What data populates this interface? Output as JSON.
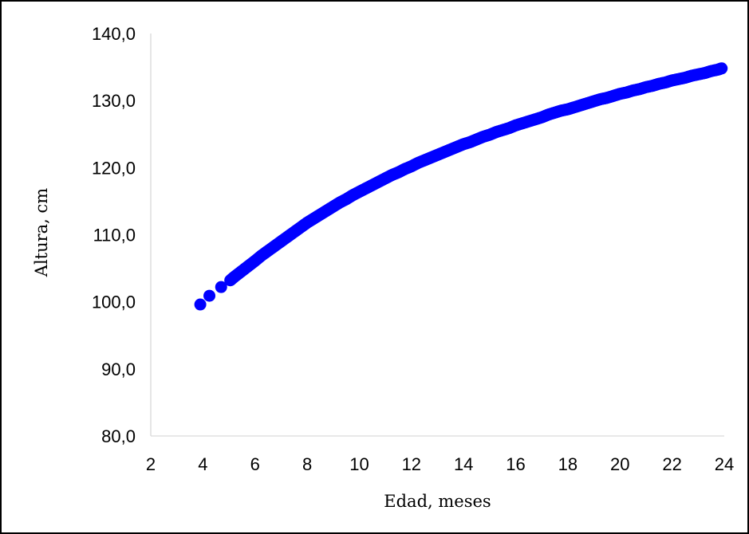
{
  "chart_data": {
    "type": "scatter",
    "title": "",
    "xlabel": "Edad, meses",
    "ylabel": "Altura, cm",
    "xlim": [
      2,
      24
    ],
    "ylim": [
      80,
      140
    ],
    "x_ticks": [
      "2",
      "4",
      "6",
      "8",
      "10",
      "12",
      "14",
      "16",
      "18",
      "20",
      "22",
      "24"
    ],
    "y_ticks": [
      "80,0",
      "90,0",
      "100,0",
      "110,0",
      "120,0",
      "130,0",
      "140,0"
    ],
    "grid": false,
    "legend": "none",
    "marker_color": "#0000ff",
    "series": [
      {
        "x": [
          3.9,
          4.25,
          4.7,
          5.05,
          5.2,
          5.4,
          5.6,
          5.8,
          6.0,
          6.25,
          6.5,
          6.75,
          7.0,
          7.25,
          7.5,
          7.75,
          8.0,
          8.25,
          8.5,
          8.75,
          9.0,
          9.25,
          9.5,
          9.75,
          10.0,
          10.25,
          10.5,
          10.75,
          11.0,
          11.25,
          11.5,
          11.75,
          12.0,
          12.25,
          12.5,
          12.75,
          13.0,
          13.25,
          13.5,
          13.75,
          14.0,
          14.25,
          14.5,
          14.75,
          15.0,
          15.25,
          15.5,
          15.75,
          16.0,
          16.25,
          16.5,
          16.75,
          17.0,
          17.25,
          17.5,
          17.75,
          18.0,
          18.25,
          18.5,
          18.75,
          19.0,
          19.25,
          19.5,
          19.75,
          20.0,
          20.25,
          20.5,
          20.75,
          21.0,
          21.25,
          21.5,
          21.75,
          22.0,
          22.25,
          22.5,
          22.75,
          23.0,
          23.25,
          23.5,
          23.75,
          23.9
        ],
        "y": [
          99.6,
          100.9,
          102.2,
          103.2,
          103.7,
          104.3,
          104.9,
          105.5,
          106.1,
          106.9,
          107.6,
          108.3,
          109.0,
          109.7,
          110.4,
          111.1,
          111.8,
          112.4,
          113.0,
          113.6,
          114.2,
          114.8,
          115.3,
          115.9,
          116.4,
          116.9,
          117.4,
          117.9,
          118.4,
          118.9,
          119.3,
          119.8,
          120.2,
          120.7,
          121.1,
          121.5,
          121.9,
          122.3,
          122.7,
          123.1,
          123.5,
          123.8,
          124.2,
          124.6,
          124.9,
          125.3,
          125.6,
          125.9,
          126.3,
          126.6,
          126.9,
          127.2,
          127.5,
          127.9,
          128.2,
          128.5,
          128.7,
          129.0,
          129.3,
          129.6,
          129.9,
          130.2,
          130.4,
          130.7,
          131.0,
          131.2,
          131.5,
          131.7,
          132.0,
          132.2,
          132.5,
          132.7,
          133.0,
          133.2,
          133.4,
          133.7,
          133.9,
          134.1,
          134.4,
          134.6,
          134.8
        ]
      }
    ]
  }
}
